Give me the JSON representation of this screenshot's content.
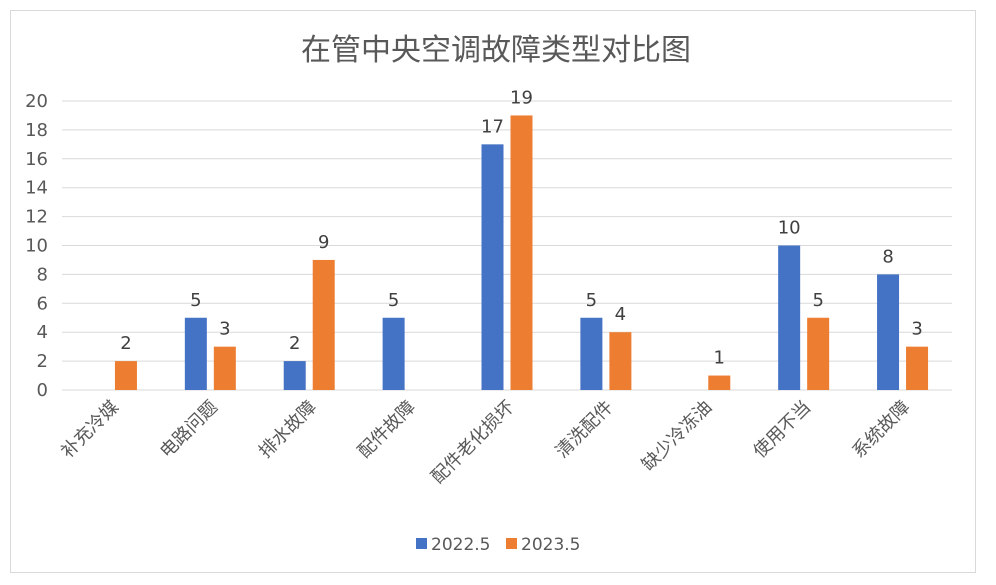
{
  "chart_data": {
    "type": "bar",
    "title": "在管中央空调故障类型对比图",
    "categories": [
      "补充冷媒",
      "电路问题",
      "排水故障",
      "配件故障",
      "配件老化损坏",
      "清洗配件",
      "缺少冷冻油",
      "使用不当",
      "系统故障"
    ],
    "series": [
      {
        "name": "2022.5",
        "color": "#4472C4",
        "values": [
          null,
          5,
          2,
          5,
          17,
          5,
          null,
          10,
          8
        ]
      },
      {
        "name": "2023.5",
        "color": "#ED7D31",
        "values": [
          2,
          3,
          9,
          null,
          19,
          4,
          1,
          5,
          3
        ]
      }
    ],
    "ylim": [
      0,
      20
    ],
    "yticks": [
      0,
      2,
      4,
      6,
      8,
      10,
      12,
      14,
      16,
      18,
      20
    ],
    "grid": true,
    "legend": "bottom",
    "data_labels": true
  }
}
